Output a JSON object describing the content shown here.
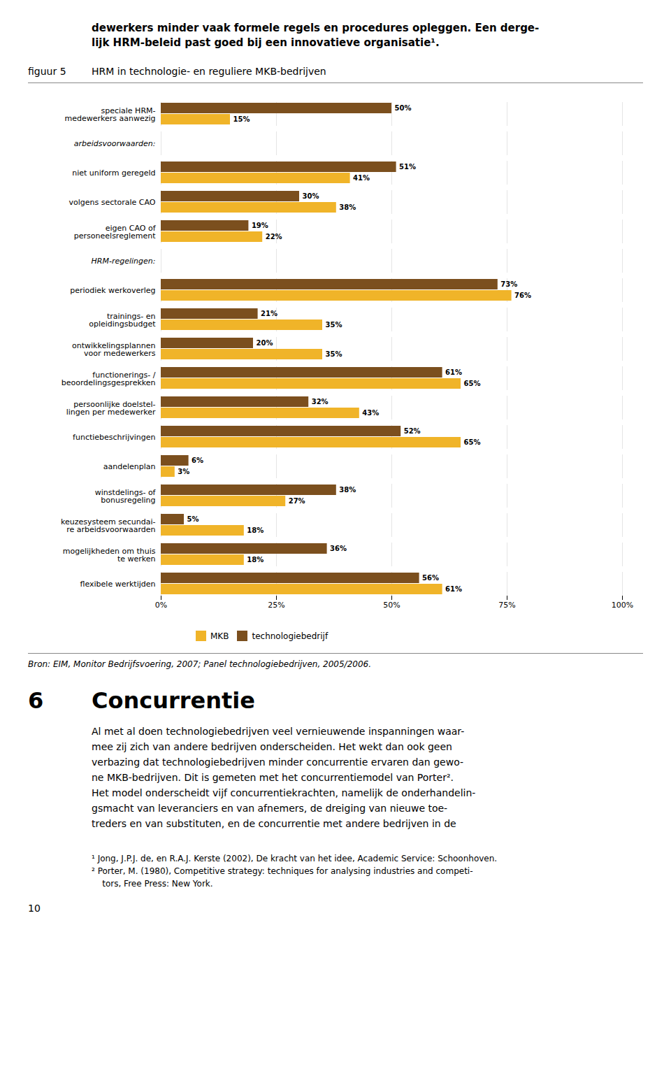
{
  "chart_data": {
    "type": "bar",
    "orientation": "horizontal",
    "title": "HRM in technologie- en reguliere MKB-bedrijven",
    "categories": [
      "speciale HRM-\nmedewerkers aanwezig",
      "arbeidsvoorwaarden:",
      "niet uniform geregeld",
      "volgens sectorale CAO",
      "eigen CAO of\npersoneelsreglement",
      "HRM-regelingen:",
      "periodiek werkoverleg",
      "trainings- en\nopleidingsbudget",
      "ontwikkelingsplannen\nvoor medewerkers",
      "functionerings- /\nbeoordelingsgesprekken",
      "persoonlijke doelstel-\nlingen per medewerker",
      "functiebeschrijvingen",
      "aandelenplan",
      "winstdelings- of\nbonusregeling",
      "keuzesysteem secundai-\nre arbeidsvoorwaarden",
      "mogelijkheden om thuis\nte werken",
      "flexibele werktijden"
    ],
    "series": [
      {
        "name": "MKB",
        "color": "#f0b429",
        "values": [
          15,
          null,
          41,
          38,
          22,
          null,
          76,
          35,
          35,
          65,
          43,
          65,
          3,
          27,
          18,
          18,
          61
        ],
        "value_labels": [
          "15%",
          null,
          "41%",
          "38%",
          "22%",
          null,
          "76%",
          "35%",
          "35%",
          "65%",
          "43%",
          "65%",
          "3%",
          "27%",
          "18%",
          "18%",
          "61%"
        ]
      },
      {
        "name": "technologiebedrijf",
        "color": "#7b4f1e",
        "values": [
          50,
          null,
          51,
          30,
          19,
          null,
          73,
          21,
          20,
          61,
          32,
          52,
          6,
          38,
          5,
          36,
          56
        ],
        "value_labels": [
          "50%",
          null,
          "51%",
          "30%",
          "19%",
          null,
          "73%",
          "21%",
          "20%",
          "61%",
          "32%",
          "52%",
          "6%",
          "38%",
          "5%",
          "36%",
          "56%"
        ]
      }
    ],
    "xlim": [
      0,
      100
    ],
    "xticks": [
      {
        "value": 0,
        "label": "0%"
      },
      {
        "value": 25,
        "label": "25%"
      },
      {
        "value": 50,
        "label": "50%"
      },
      {
        "value": 75,
        "label": "75%"
      },
      {
        "value": 100,
        "label": "100%"
      }
    ],
    "grid": true,
    "legend": "bottom",
    "data_labels": true,
    "annotations": [
      [
        "dewerkers minder vaak formele regels en procedures opleggen. Een derge-",
        "lijk HRM-beleid past goed bij een innovatieve organisatie¹."
      ],
      [
        "figuur 5"
      ],
      [
        "Bron: EIM, Monitor Bedrijfsvoering, 2007; Panel technologiebedrijven, 2005/2006."
      ],
      [
        "6",
        "Concurrentie"
      ],
      [
        "Al met al doen technologiebedrijven veel vernieuwende inspanningen waar-",
        "mee zij zich van andere bedrijven onderscheiden. Het wekt dan ook geen",
        "verbazing dat technologiebedrijven minder concurrentie ervaren dan gewo-",
        "ne MKB-bedrijven. Dit is gemeten met het concurrentiemodel van Porter².",
        "Het model onderscheidt vijf concurrentiekrachten, namelijk de onderhandelin-",
        "gsmacht van leveranciers en van afnemers, de dreiging van nieuwe toe-",
        "treders en van substituten, en de concurrentie met andere bedrijven in de"
      ],
      [
        "¹ Jong, J.P.J. de, en R.A.J. Kerste (2002), De kracht van het idee, Academic Service: Schoonhoven.",
        "² Porter, M. (1980), Competitive strategy: techniques for analysing industries and competi-",
        "    tors, Free Press: New York."
      ],
      [
        "10"
      ]
    ]
  }
}
